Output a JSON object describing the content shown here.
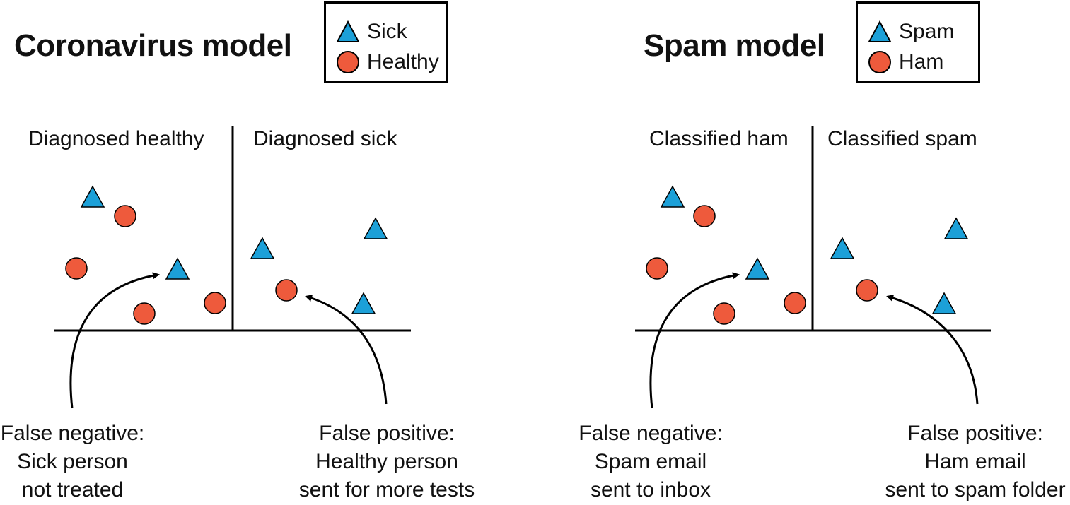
{
  "colors": {
    "positive": "#1ca0d8",
    "negative": "#ee5a3c",
    "ink": "#000000"
  },
  "shapes": {
    "positive": "triangle",
    "negative": "circle"
  },
  "panels": [
    {
      "title": "Coronavirus model",
      "legend": {
        "positive": "Sick",
        "negative": "Healthy"
      },
      "left_region": "Diagnosed healthy",
      "right_region": "Diagnosed sick",
      "false_negative": {
        "line1": "False negative:",
        "line2": "Sick person",
        "line3": "not treated"
      },
      "false_positive": {
        "line1": "False positive:",
        "line2": "Healthy person",
        "line3": "sent for more tests"
      }
    },
    {
      "title": "Spam model",
      "legend": {
        "positive": "Spam",
        "negative": "Ham"
      },
      "left_region": "Classified ham",
      "right_region": "Classified spam",
      "false_negative": {
        "line1": "False negative:",
        "line2": "Spam email",
        "line3": "sent to inbox"
      },
      "false_positive": {
        "line1": "False positive:",
        "line2": "Ham email",
        "line3": "sent to spam folder"
      }
    }
  ]
}
